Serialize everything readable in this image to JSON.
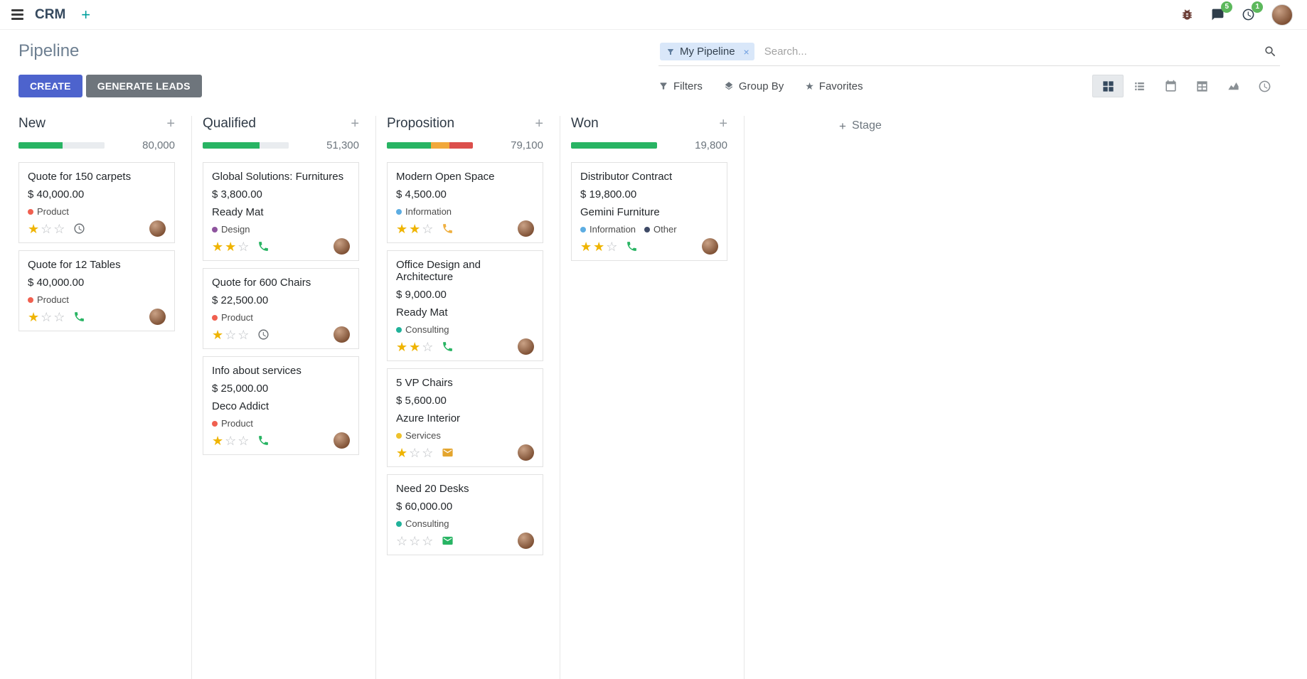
{
  "colors": {
    "primary": "#4d63cd",
    "secondary_btn": "#6e757c",
    "success": "#28b463",
    "star": "#efb400",
    "badge": "#5cb85c",
    "facet_bg": "#d9e7f9",
    "teal": "#00a09d",
    "bar_empty": "#e9ecef"
  },
  "navbar": {
    "app_name": "CRM",
    "messages_badge": "5",
    "activities_badge": "1"
  },
  "control_panel": {
    "title": "Pipeline",
    "create_label": "CREATE",
    "generate_leads_label": "GENERATE LEADS",
    "filters_label": "Filters",
    "group_by_label": "Group By",
    "favorites_label": "Favorites",
    "search": {
      "facet": "My Pipeline",
      "placeholder": "Search..."
    }
  },
  "view_switcher": [
    "kanban",
    "list",
    "calendar",
    "pivot",
    "graph",
    "activity"
  ],
  "icons": {
    "menu-icon": "hamburger bars",
    "plus-icon": "+",
    "bug-icon": "bug",
    "messages-icon": "chat bubble",
    "activities-icon": "clock",
    "search-icon": "magnifier",
    "filter-icon": "funnel",
    "group-by-icon": "layers",
    "favorites-icon": "★",
    "star-filled": "★",
    "star-empty": "☆",
    "phone-icon": "phone handset",
    "clock-icon": "clock",
    "envelope-icon": "envelope"
  },
  "board": {
    "add_stage_label": "Stage",
    "columns": [
      {
        "name": "New",
        "total": "80,000",
        "progress": [
          {
            "color": "#28b463",
            "pct": 51
          },
          {
            "color": "#e9ecef",
            "pct": 49
          }
        ],
        "cards": [
          {
            "title": "Quote for 150 carpets",
            "amount": "$ 40,000.00",
            "partner": null,
            "tags": [
              {
                "label": "Product",
                "color": "#f06050"
              }
            ],
            "stars": 1,
            "activity": {
              "icon": "clock-icon",
              "color": "#6b7075"
            }
          },
          {
            "title": "Quote for 12 Tables",
            "amount": "$ 40,000.00",
            "partner": null,
            "tags": [
              {
                "label": "Product",
                "color": "#f06050"
              }
            ],
            "stars": 1,
            "activity": {
              "icon": "phone-icon",
              "color": "#28b463"
            }
          }
        ]
      },
      {
        "name": "Qualified",
        "total": "51,300",
        "progress": [
          {
            "color": "#28b463",
            "pct": 66
          },
          {
            "color": "#e9ecef",
            "pct": 34
          }
        ],
        "cards": [
          {
            "title": "Global Solutions: Furnitures",
            "amount": "$ 3,800.00",
            "partner": "Ready Mat",
            "tags": [
              {
                "label": "Design",
                "color": "#8e549e"
              }
            ],
            "stars": 2,
            "activity": {
              "icon": "phone-icon",
              "color": "#28b463"
            }
          },
          {
            "title": "Quote for 600 Chairs",
            "amount": "$ 22,500.00",
            "partner": null,
            "tags": [
              {
                "label": "Product",
                "color": "#f06050"
              }
            ],
            "stars": 1,
            "activity": {
              "icon": "clock-icon",
              "color": "#6b7075"
            }
          },
          {
            "title": "Info about services",
            "amount": "$ 25,000.00",
            "partner": "Deco Addict",
            "tags": [
              {
                "label": "Product",
                "color": "#f06050"
              }
            ],
            "stars": 1,
            "activity": {
              "icon": "phone-icon",
              "color": "#28b463"
            }
          }
        ]
      },
      {
        "name": "Proposition",
        "total": "79,100",
        "progress": [
          {
            "color": "#28b463",
            "pct": 51
          },
          {
            "color": "#f1a83b",
            "pct": 22
          },
          {
            "color": "#dc4f4c",
            "pct": 27
          }
        ],
        "cards": [
          {
            "title": "Modern Open Space",
            "amount": "$ 4,500.00",
            "partner": null,
            "tags": [
              {
                "label": "Information",
                "color": "#5dade2"
              }
            ],
            "stars": 2,
            "activity": {
              "icon": "phone-icon",
              "color": "#efb041"
            }
          },
          {
            "title": "Office Design and Architecture",
            "amount": "$ 9,000.00",
            "partner": "Ready Mat",
            "tags": [
              {
                "label": "Consulting",
                "color": "#21b29a"
              }
            ],
            "stars": 2,
            "activity": {
              "icon": "phone-icon",
              "color": "#28b463"
            }
          },
          {
            "title": "5 VP Chairs",
            "amount": "$ 5,600.00",
            "partner": "Azure Interior",
            "tags": [
              {
                "label": "Services",
                "color": "#eec22c"
              }
            ],
            "stars": 1,
            "activity": {
              "icon": "envelope-icon",
              "color": "#e4a52e"
            }
          },
          {
            "title": "Need 20 Desks",
            "amount": "$ 60,000.00",
            "partner": null,
            "tags": [
              {
                "label": "Consulting",
                "color": "#21b29a"
              }
            ],
            "stars": 0,
            "activity": {
              "icon": "envelope-icon",
              "color": "#28b463"
            }
          }
        ]
      },
      {
        "name": "Won",
        "total": "19,800",
        "progress": [
          {
            "color": "#28b463",
            "pct": 100
          }
        ],
        "cards": [
          {
            "title": "Distributor Contract",
            "amount": "$ 19,800.00",
            "partner": "Gemini Furniture",
            "tags": [
              {
                "label": "Information",
                "color": "#5dade2"
              },
              {
                "label": "Other",
                "color": "#3e4a66"
              }
            ],
            "stars": 2,
            "activity": {
              "icon": "phone-icon",
              "color": "#28b463"
            }
          }
        ]
      }
    ]
  }
}
